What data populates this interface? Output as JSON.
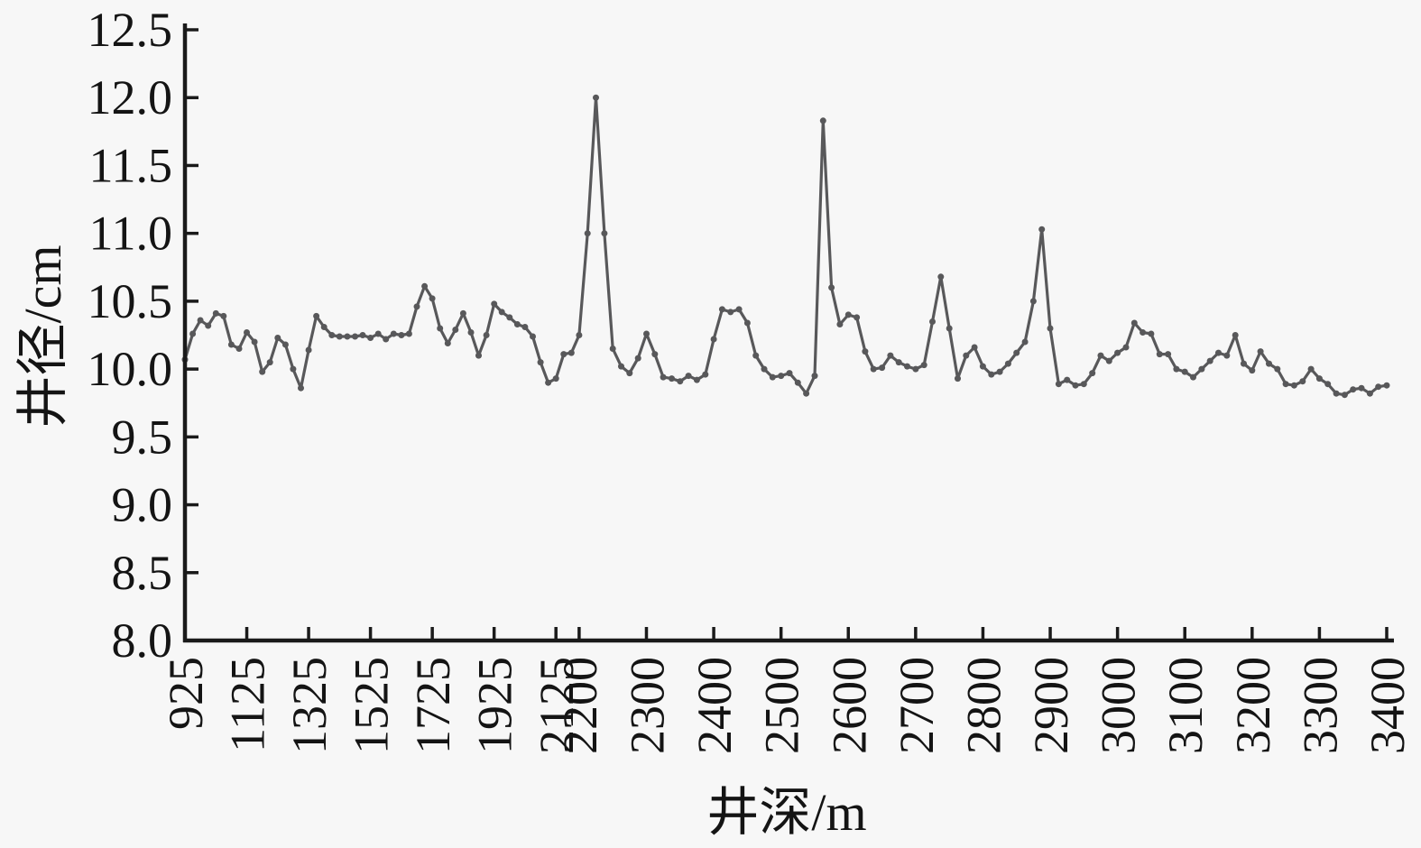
{
  "page": {
    "background": "#f7f7f7",
    "text_color": "#141414",
    "axis_color": "#1a1a1a"
  },
  "chart_data": {
    "type": "line",
    "title": "",
    "xlabel": "井深/m",
    "ylabel": "井径/cm",
    "ylim": [
      8.0,
      12.5
    ],
    "grid": "off",
    "legend": "none",
    "x_axis": {
      "title": "井深/m",
      "domain": [
        925,
        3400
      ],
      "break_depth": 2200,
      "break_fraction": 0.328,
      "tick_labels": [
        "925",
        "1125",
        "1325",
        "1525",
        "1725",
        "1925",
        "2125",
        "2200",
        "2300",
        "2400",
        "2500",
        "2600",
        "2700",
        "2800",
        "2900",
        "3000",
        "3100",
        "3200",
        "3300",
        "3400"
      ],
      "tick_depths": [
        925,
        1125,
        1325,
        1525,
        1725,
        1925,
        2125,
        2200,
        2300,
        2400,
        2500,
        2600,
        2700,
        2800,
        2900,
        3000,
        3100,
        3200,
        3300,
        3400
      ]
    },
    "y_axis": {
      "title": "井径/cm",
      "min": 8.0,
      "max": 12.5,
      "step": 0.5,
      "tick_labels": [
        "8.0",
        "8.5",
        "9.0",
        "9.5",
        "10.0",
        "10.5",
        "11.0",
        "11.5",
        "12.0",
        "12.5"
      ]
    },
    "series": [
      {
        "name": "井径",
        "color": "#58585a",
        "marker": "circle",
        "depths": [
          925,
          950,
          975,
          1000,
          1025,
          1050,
          1075,
          1100,
          1125,
          1150,
          1175,
          1200,
          1225,
          1250,
          1275,
          1300,
          1325,
          1350,
          1375,
          1400,
          1425,
          1450,
          1475,
          1500,
          1525,
          1550,
          1575,
          1600,
          1625,
          1650,
          1675,
          1700,
          1725,
          1750,
          1775,
          1800,
          1825,
          1850,
          1875,
          1900,
          1925,
          1950,
          1975,
          2000,
          2025,
          2050,
          2075,
          2100,
          2125,
          2150,
          2175,
          2200,
          2212.5,
          2225,
          2237.5,
          2250,
          2262.5,
          2275,
          2287.5,
          2300,
          2312.5,
          2325,
          2337.5,
          2350,
          2362.5,
          2375,
          2387.5,
          2400,
          2412.5,
          2425,
          2437.5,
          2450,
          2462.5,
          2475,
          2487.5,
          2500,
          2512.5,
          2525,
          2537.5,
          2550,
          2562.5,
          2575,
          2587.5,
          2600,
          2612.5,
          2625,
          2637.5,
          2650,
          2662.5,
          2675,
          2687.5,
          2700,
          2712.5,
          2725,
          2737.5,
          2750,
          2762.5,
          2775,
          2787.5,
          2800,
          2812.5,
          2825,
          2837.5,
          2850,
          2862.5,
          2875,
          2887.5,
          2900,
          2912.5,
          2925,
          2937.5,
          2950,
          2962.5,
          2975,
          2987.5,
          3000,
          3012.5,
          3025,
          3037.5,
          3050,
          3062.5,
          3075,
          3087.5,
          3100,
          3112.5,
          3125,
          3137.5,
          3150,
          3162.5,
          3175,
          3187.5,
          3200,
          3212.5,
          3225,
          3237.5,
          3250,
          3262.5,
          3275,
          3287.5,
          3300,
          3312.5,
          3325,
          3337.5,
          3350,
          3362.5,
          3375,
          3387.5,
          3400
        ],
        "values": [
          10.07,
          10.26,
          10.36,
          10.32,
          10.41,
          10.39,
          10.18,
          10.15,
          10.27,
          10.2,
          9.98,
          10.05,
          10.23,
          10.18,
          10.0,
          9.86,
          10.14,
          10.39,
          10.31,
          10.25,
          10.24,
          10.24,
          10.24,
          10.25,
          10.23,
          10.26,
          10.22,
          10.26,
          10.25,
          10.26,
          10.46,
          10.61,
          10.52,
          10.3,
          10.19,
          10.29,
          10.41,
          10.27,
          10.1,
          10.25,
          10.48,
          10.42,
          10.38,
          10.33,
          10.31,
          10.24,
          10.05,
          9.9,
          9.93,
          10.11,
          10.12,
          10.25,
          11.0,
          12.0,
          11.0,
          10.15,
          10.02,
          9.97,
          10.08,
          10.26,
          10.11,
          9.94,
          9.93,
          9.91,
          9.95,
          9.92,
          9.96,
          10.22,
          10.44,
          10.42,
          10.44,
          10.34,
          10.1,
          10.0,
          9.94,
          9.95,
          9.97,
          9.9,
          9.82,
          9.95,
          11.83,
          10.6,
          10.33,
          10.4,
          10.38,
          10.13,
          10.0,
          10.01,
          10.1,
          10.05,
          10.02,
          10.0,
          10.03,
          10.35,
          10.68,
          10.3,
          9.93,
          10.1,
          10.16,
          10.02,
          9.96,
          9.98,
          10.04,
          10.12,
          10.2,
          10.5,
          11.03,
          10.3,
          9.89,
          9.92,
          9.88,
          9.89,
          9.97,
          10.1,
          10.06,
          10.12,
          10.16,
          10.34,
          10.27,
          10.26,
          10.11,
          10.11,
          10.0,
          9.98,
          9.94,
          10.0,
          10.06,
          10.12,
          10.1,
          10.25,
          10.04,
          9.99,
          10.13,
          10.04,
          10.0,
          9.89,
          9.88,
          9.91,
          10.0,
          9.93,
          9.89,
          9.82,
          9.81,
          9.85,
          9.86,
          9.82,
          9.87,
          9.88
        ]
      }
    ]
  }
}
